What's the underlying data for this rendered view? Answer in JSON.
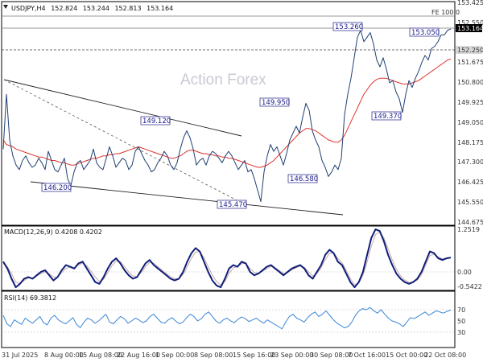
{
  "chart_data": {
    "type": "line",
    "header": {
      "symbol": "USDJPY,H4",
      "open": "152.824",
      "high": "153.244",
      "low": "152.813",
      "close": "153.164"
    },
    "watermark": "Action Forex",
    "fe_label": "FE 100.0",
    "x_ticks": [
      "31 Jul 2025",
      "8 Aug 00:00",
      "15 Aug 08:00",
      "22 Aug 16:00",
      "1 Sep 00:00",
      "8 Sep 08:00",
      "15 Sep 16:00",
      "23 Sep 00:00",
      "30 Sep 08:00",
      "7 Oct 16:00",
      "15 Oct 00:00",
      "22 Oct 08:00"
    ],
    "price_panel": {
      "ylim": [
        145.0,
        154.0
      ],
      "y_ticks": [
        "153.425",
        "152.550",
        "151.675",
        "150.800",
        "149.925",
        "149.050",
        "148.175",
        "147.300",
        "146.425",
        "145.550",
        "144.675"
      ],
      "price_series": [
        147.9,
        150.3,
        148.3,
        147.6,
        147.2,
        147.0,
        147.4,
        147.6,
        147.3,
        147.1,
        147.2,
        147.5,
        147.3,
        147.0,
        147.8,
        147.4,
        147.0,
        146.9,
        147.2,
        147.5,
        146.6,
        146.3,
        146.9,
        147.3,
        147.4,
        147.0,
        147.2,
        147.4,
        147.9,
        147.3,
        147.1,
        147.0,
        147.5,
        148.0,
        147.6,
        147.1,
        147.3,
        147.5,
        147.4,
        147.0,
        147.2,
        147.8,
        148.0,
        147.7,
        147.4,
        147.2,
        146.9,
        147.0,
        147.3,
        147.5,
        147.8,
        147.6,
        147.2,
        147.0,
        147.3,
        147.9,
        148.4,
        148.7,
        148.4,
        147.9,
        147.2,
        147.4,
        147.5,
        147.2,
        147.6,
        147.8,
        147.7,
        147.5,
        147.3,
        147.6,
        147.8,
        147.6,
        147.3,
        147.0,
        147.2,
        147.4,
        146.9,
        147.0,
        146.6,
        146.1,
        145.6,
        146.9,
        147.6,
        148.1,
        147.8,
        148.0,
        147.6,
        147.2,
        147.7,
        148.3,
        148.6,
        148.9,
        148.6,
        149.3,
        149.9,
        149.6,
        148.7,
        148.3,
        148.0,
        147.4,
        147.1,
        146.7,
        146.9,
        147.2,
        147.0,
        147.5,
        149.4,
        150.3,
        151.0,
        151.9,
        152.8,
        153.1,
        152.6,
        152.8,
        153.0,
        152.5,
        151.8,
        151.5,
        151.9,
        151.4,
        150.8,
        150.9,
        150.4,
        150.1,
        149.5,
        150.3,
        150.9,
        150.6,
        151.0,
        151.3,
        151.7,
        152.0,
        151.8,
        152.3,
        152.4,
        152.6,
        152.9,
        152.9,
        153.1,
        153.164
      ],
      "ma_series": [
        148.3,
        148.1,
        148.05,
        148.0,
        147.9,
        147.85,
        147.8,
        147.75,
        147.7,
        147.65,
        147.6,
        147.55,
        147.55,
        147.5,
        147.45,
        147.4,
        147.4,
        147.35,
        147.3,
        147.3,
        147.25,
        147.2,
        147.2,
        147.25,
        147.3,
        147.35,
        147.4,
        147.45,
        147.5,
        147.5,
        147.55,
        147.6,
        147.6,
        147.65,
        147.65,
        147.7,
        147.7,
        147.75,
        147.8,
        147.85,
        147.9,
        147.95,
        148.0,
        147.95,
        147.9,
        147.85,
        147.8,
        147.75,
        147.7,
        147.65,
        147.6,
        147.55,
        147.5,
        147.5,
        147.55,
        147.6,
        147.7,
        147.8,
        147.85,
        147.85,
        147.8,
        147.75,
        147.7,
        147.7,
        147.65,
        147.65,
        147.6,
        147.6,
        147.55,
        147.55,
        147.5,
        147.5,
        147.45,
        147.4,
        147.35,
        147.3,
        147.25,
        147.2,
        147.15,
        147.1,
        147.1,
        147.15,
        147.2,
        147.3,
        147.4,
        147.55,
        147.7,
        147.85,
        148.0,
        148.15,
        148.3,
        148.45,
        148.6,
        148.7,
        148.8,
        148.8,
        148.75,
        148.7,
        148.6,
        148.5,
        148.4,
        148.3,
        148.25,
        148.2,
        148.2,
        148.3,
        148.5,
        148.8,
        149.1,
        149.4,
        149.7,
        150.0,
        150.3,
        150.5,
        150.7,
        150.85,
        150.95,
        151.0,
        151.0,
        151.0,
        150.95,
        150.9,
        150.85,
        150.8,
        150.75,
        150.75,
        150.75,
        150.8,
        150.85,
        150.9,
        151.0,
        151.1,
        151.2,
        151.3,
        151.4,
        151.5,
        151.6,
        151.7,
        151.8,
        151.85
      ],
      "h_lines": [
        {
          "level": 153.425,
          "label": "FE 100.0",
          "style": "solid"
        },
        {
          "level": 152.8,
          "label": "",
          "style": "solid"
        },
        {
          "level": 152.25,
          "label": "152.250",
          "style": "dashed"
        }
      ],
      "price_tag": "153.164",
      "level_tag": "152.250",
      "annotations": [
        "153.260",
        "153.050",
        "149.950",
        "149.370",
        "149.120",
        "146.580",
        "146.200",
        "145.470"
      ]
    },
    "macd_panel": {
      "title": "MACD(12,26,9) 0.4208 0.4202",
      "y_ticks": [
        "1.2519",
        "0.00",
        "-0.5422"
      ],
      "ylim": [
        -0.75,
        1.5
      ],
      "macd": [
        0.3,
        0.1,
        -0.2,
        -0.45,
        -0.35,
        -0.2,
        -0.15,
        -0.2,
        -0.1,
        0.0,
        0.05,
        -0.1,
        -0.25,
        -0.15,
        0.05,
        0.2,
        0.15,
        0.1,
        0.25,
        0.3,
        0.1,
        -0.1,
        -0.3,
        -0.35,
        -0.15,
        0.1,
        0.3,
        0.4,
        0.25,
        0.05,
        -0.1,
        -0.2,
        -0.15,
        0.05,
        0.25,
        0.35,
        0.2,
        0.1,
        0.0,
        -0.1,
        -0.2,
        -0.25,
        -0.2,
        0.0,
        0.3,
        0.55,
        0.7,
        0.6,
        0.3,
        0.0,
        -0.25,
        -0.4,
        -0.45,
        -0.2,
        0.1,
        0.2,
        0.15,
        0.3,
        0.25,
        0.0,
        -0.1,
        -0.05,
        0.05,
        0.15,
        0.2,
        0.1,
        0.0,
        -0.1,
        0.0,
        0.1,
        0.15,
        0.2,
        0.1,
        -0.1,
        -0.2,
        0.0,
        0.2,
        0.5,
        0.65,
        0.55,
        0.3,
        0.2,
        -0.05,
        -0.3,
        -0.45,
        -0.3,
        0.0,
        0.5,
        1.0,
        1.25,
        1.2,
        0.9,
        0.5,
        0.2,
        -0.05,
        -0.2,
        -0.3,
        -0.35,
        -0.3,
        -0.2,
        0.0,
        0.3,
        0.6,
        0.55,
        0.4,
        0.35,
        0.4,
        0.42
      ],
      "signal": [
        0.25,
        0.15,
        -0.05,
        -0.3,
        -0.35,
        -0.25,
        -0.18,
        -0.18,
        -0.12,
        -0.05,
        0.0,
        -0.05,
        -0.15,
        -0.15,
        -0.02,
        0.1,
        0.14,
        0.12,
        0.2,
        0.26,
        0.18,
        0.02,
        -0.15,
        -0.28,
        -0.22,
        -0.02,
        0.18,
        0.32,
        0.3,
        0.15,
        0.0,
        -0.12,
        -0.14,
        -0.02,
        0.15,
        0.28,
        0.25,
        0.15,
        0.05,
        -0.05,
        -0.14,
        -0.2,
        -0.2,
        -0.08,
        0.15,
        0.4,
        0.58,
        0.6,
        0.42,
        0.15,
        -0.1,
        -0.28,
        -0.38,
        -0.28,
        -0.05,
        0.12,
        0.15,
        0.24,
        0.25,
        0.1,
        -0.02,
        -0.04,
        0.02,
        0.1,
        0.16,
        0.12,
        0.04,
        -0.05,
        -0.02,
        0.06,
        0.12,
        0.17,
        0.13,
        0.0,
        -0.12,
        -0.05,
        0.12,
        0.36,
        0.55,
        0.56,
        0.4,
        0.27,
        0.05,
        -0.2,
        -0.38,
        -0.33,
        -0.1,
        0.3,
        0.75,
        1.1,
        1.17,
        1.0,
        0.68,
        0.35,
        0.08,
        -0.12,
        -0.24,
        -0.31,
        -0.3,
        -0.24,
        -0.08,
        0.2,
        0.48,
        0.52,
        0.44,
        0.38,
        0.4,
        0.42
      ]
    },
    "rsi_panel": {
      "title": "RSI(14) 69.3812",
      "y_ticks": [
        "70",
        "50",
        "30"
      ],
      "ylim": [
        0,
        100
      ],
      "rsi": [
        60,
        45,
        40,
        52,
        48,
        44,
        55,
        50,
        46,
        52,
        58,
        47,
        43,
        55,
        60,
        52,
        48,
        45,
        50,
        56,
        44,
        38,
        48,
        55,
        52,
        46,
        50,
        56,
        62,
        48,
        45,
        52,
        58,
        54,
        46,
        50,
        55,
        52,
        47,
        50,
        58,
        62,
        55,
        48,
        46,
        52,
        56,
        50,
        45,
        48,
        56,
        62,
        58,
        50,
        54,
        62,
        66,
        58,
        50,
        46,
        52,
        55,
        50,
        47,
        53,
        57,
        54,
        49,
        52,
        55,
        50,
        46,
        52,
        48,
        44,
        40,
        36,
        48,
        58,
        62,
        55,
        52,
        48,
        56,
        62,
        66,
        58,
        62,
        68,
        60,
        52,
        46,
        42,
        38,
        40,
        48,
        60,
        68,
        72,
        70,
        74,
        68,
        64,
        70,
        62,
        55,
        50,
        48,
        45,
        40,
        48,
        56,
        54,
        58,
        62,
        66,
        60,
        64,
        68,
        66,
        64,
        67,
        69.38
      ]
    }
  }
}
